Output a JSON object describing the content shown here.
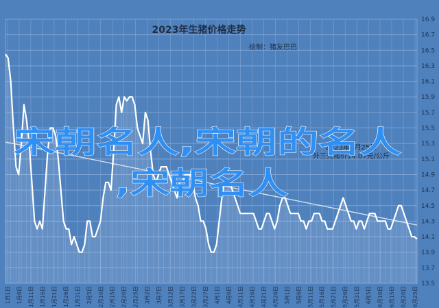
{
  "chart_data": {
    "type": "line",
    "title": "2023年生猪价格走势",
    "subtitle": "绘制：猪友巴巴",
    "annotation_lines": [
      "2023年6月25日",
      "外三元猪价14.07元/公斤"
    ],
    "overlay_text": [
      "宋朝名人,宋朝的名人",
      ",宋朝名人"
    ],
    "ylim": [
      13.5,
      16.9
    ],
    "yticks": [
      13.5,
      13.7,
      13.9,
      14.1,
      14.3,
      14.5,
      14.7,
      14.9,
      15.1,
      15.3,
      15.5,
      15.7,
      15.9,
      16.1,
      16.3,
      16.5,
      16.7,
      16.9
    ],
    "x_labels": [
      "1月1日",
      "1月6日",
      "1月11日",
      "1月16日",
      "1月21日",
      "1月26日",
      "1月31日",
      "2月5日",
      "2月10日",
      "2月15日",
      "2月20日",
      "2月25日",
      "3月2日",
      "3月7日",
      "3月12日",
      "3月17日",
      "3月22日",
      "3月27日",
      "4月1日",
      "4月6日",
      "4月11日",
      "4月16日",
      "4月21日",
      "4月26日",
      "5月1日",
      "5月6日",
      "5月11日",
      "5月16日",
      "5月21日",
      "5月26日",
      "5月31日",
      "6月5日",
      "6月10日",
      "6月15日",
      "6月20日",
      "6月25日"
    ],
    "series": [
      {
        "values": [
          16.45,
          16.4,
          16.1,
          15.5,
          15.0,
          14.9,
          15.3,
          15.8,
          15.6,
          15.3,
          14.8,
          14.3,
          14.2,
          14.3,
          14.2,
          14.7,
          15.2,
          15.5,
          15.5,
          15.4,
          15.1,
          14.7,
          14.3,
          14.2,
          14.2,
          14.0,
          14.1,
          14.0,
          13.9,
          13.9,
          14.0,
          14.3,
          14.3,
          14.1,
          14.1,
          14.2,
          14.3,
          14.6,
          14.8,
          14.8,
          14.7,
          15.2,
          15.8,
          15.9,
          15.7,
          15.9,
          15.85,
          15.9,
          15.9,
          15.8,
          15.5,
          15.4,
          15.3,
          15.7,
          15.6,
          15.2,
          14.9,
          14.8,
          14.9,
          15.0,
          15.0,
          15.0,
          14.9,
          14.8,
          14.7,
          14.6,
          14.8,
          14.8,
          14.9,
          14.9,
          14.9,
          14.8,
          14.6,
          14.5,
          14.3,
          14.3,
          14.2,
          14.0,
          13.9,
          13.9,
          14.0,
          14.3,
          14.6,
          14.8,
          14.8,
          14.8,
          14.7,
          14.6,
          14.5,
          14.4,
          14.4,
          14.4,
          14.4,
          14.4,
          14.4,
          14.3,
          14.2,
          14.2,
          14.3,
          14.4,
          14.4,
          14.3,
          14.2,
          14.3,
          14.5,
          14.6,
          14.6,
          14.5,
          14.4,
          14.4,
          14.4,
          14.4,
          14.3,
          14.3,
          14.2,
          14.3,
          14.3,
          14.4,
          14.4,
          14.4,
          14.3,
          14.3,
          14.2,
          14.2,
          14.2,
          14.3,
          14.4,
          14.5,
          14.6,
          14.5,
          14.4,
          14.3,
          14.3,
          14.2,
          14.3,
          14.3,
          14.2,
          14.3,
          14.4,
          14.4,
          14.4,
          14.3,
          14.3,
          14.3,
          14.3,
          14.2,
          14.2,
          14.3,
          14.4,
          14.5,
          14.5,
          14.4,
          14.3,
          14.2,
          14.1,
          14.1,
          14.07
        ]
      }
    ],
    "trendline": [
      15.32,
      14.25
    ],
    "grid": true,
    "colors": {
      "background": "#4f81bd",
      "line": "#ffffff",
      "grid": "#7ea3d4",
      "overlay": "#2f8ff2"
    }
  }
}
